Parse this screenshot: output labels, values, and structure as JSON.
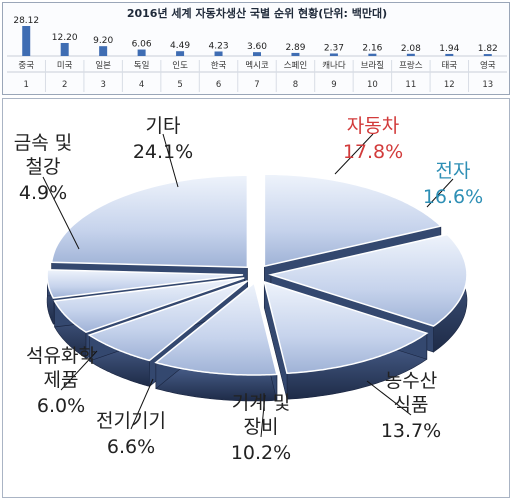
{
  "chart_data": [
    {
      "type": "bar",
      "title": "2016년 세계 자동차생산 국별 순위 현황(단위: 백만대)",
      "categories": [
        "중국",
        "미국",
        "일본",
        "독일",
        "인도",
        "한국",
        "멕시코",
        "스페인",
        "캐나다",
        "브라질",
        "프랑스",
        "태국",
        "영국"
      ],
      "ranks": [
        "1",
        "2",
        "3",
        "4",
        "5",
        "6",
        "7",
        "8",
        "9",
        "10",
        "11",
        "12",
        "13"
      ],
      "values": [
        28.12,
        12.2,
        9.2,
        6.06,
        4.49,
        4.23,
        3.6,
        2.89,
        2.37,
        2.16,
        2.08,
        1.94,
        1.82
      ],
      "value_labels": [
        "28.12",
        "12.20",
        "9.20",
        "6.06",
        "4.49",
        "4.23",
        "3.60",
        "2.89",
        "2.37",
        "2.16",
        "2.08",
        "1.94",
        "1.82"
      ],
      "bar_color": "#3f6db3"
    },
    {
      "type": "pie",
      "slices": [
        {
          "label": "자동차",
          "value": 17.8,
          "pct": "17.8%",
          "color": "#d23b3b"
        },
        {
          "label": "전자",
          "value": 16.6,
          "pct": "16.6%",
          "color": "#2e8fb5"
        },
        {
          "label": "농수산 식품",
          "value": 13.7,
          "pct": "13.7%",
          "color": "#222222"
        },
        {
          "label": "기계 및 장비",
          "value": 10.2,
          "pct": "10.2%",
          "color": "#222222"
        },
        {
          "label": "전기기기",
          "value": 6.6,
          "pct": "6.6%",
          "color": "#222222"
        },
        {
          "label": "석유화학 제품",
          "value": 6.0,
          "pct": "6.0%",
          "color": "#222222"
        },
        {
          "label": "금속 및 철강",
          "value": 4.9,
          "pct": "4.9%",
          "color": "#222222"
        },
        {
          "label": "기타",
          "value": 24.1,
          "pct": "24.1%",
          "color": "#222222"
        }
      ],
      "slice_fill_top": "#c9d6ee",
      "slice_fill_side": "#2c3f63"
    }
  ]
}
